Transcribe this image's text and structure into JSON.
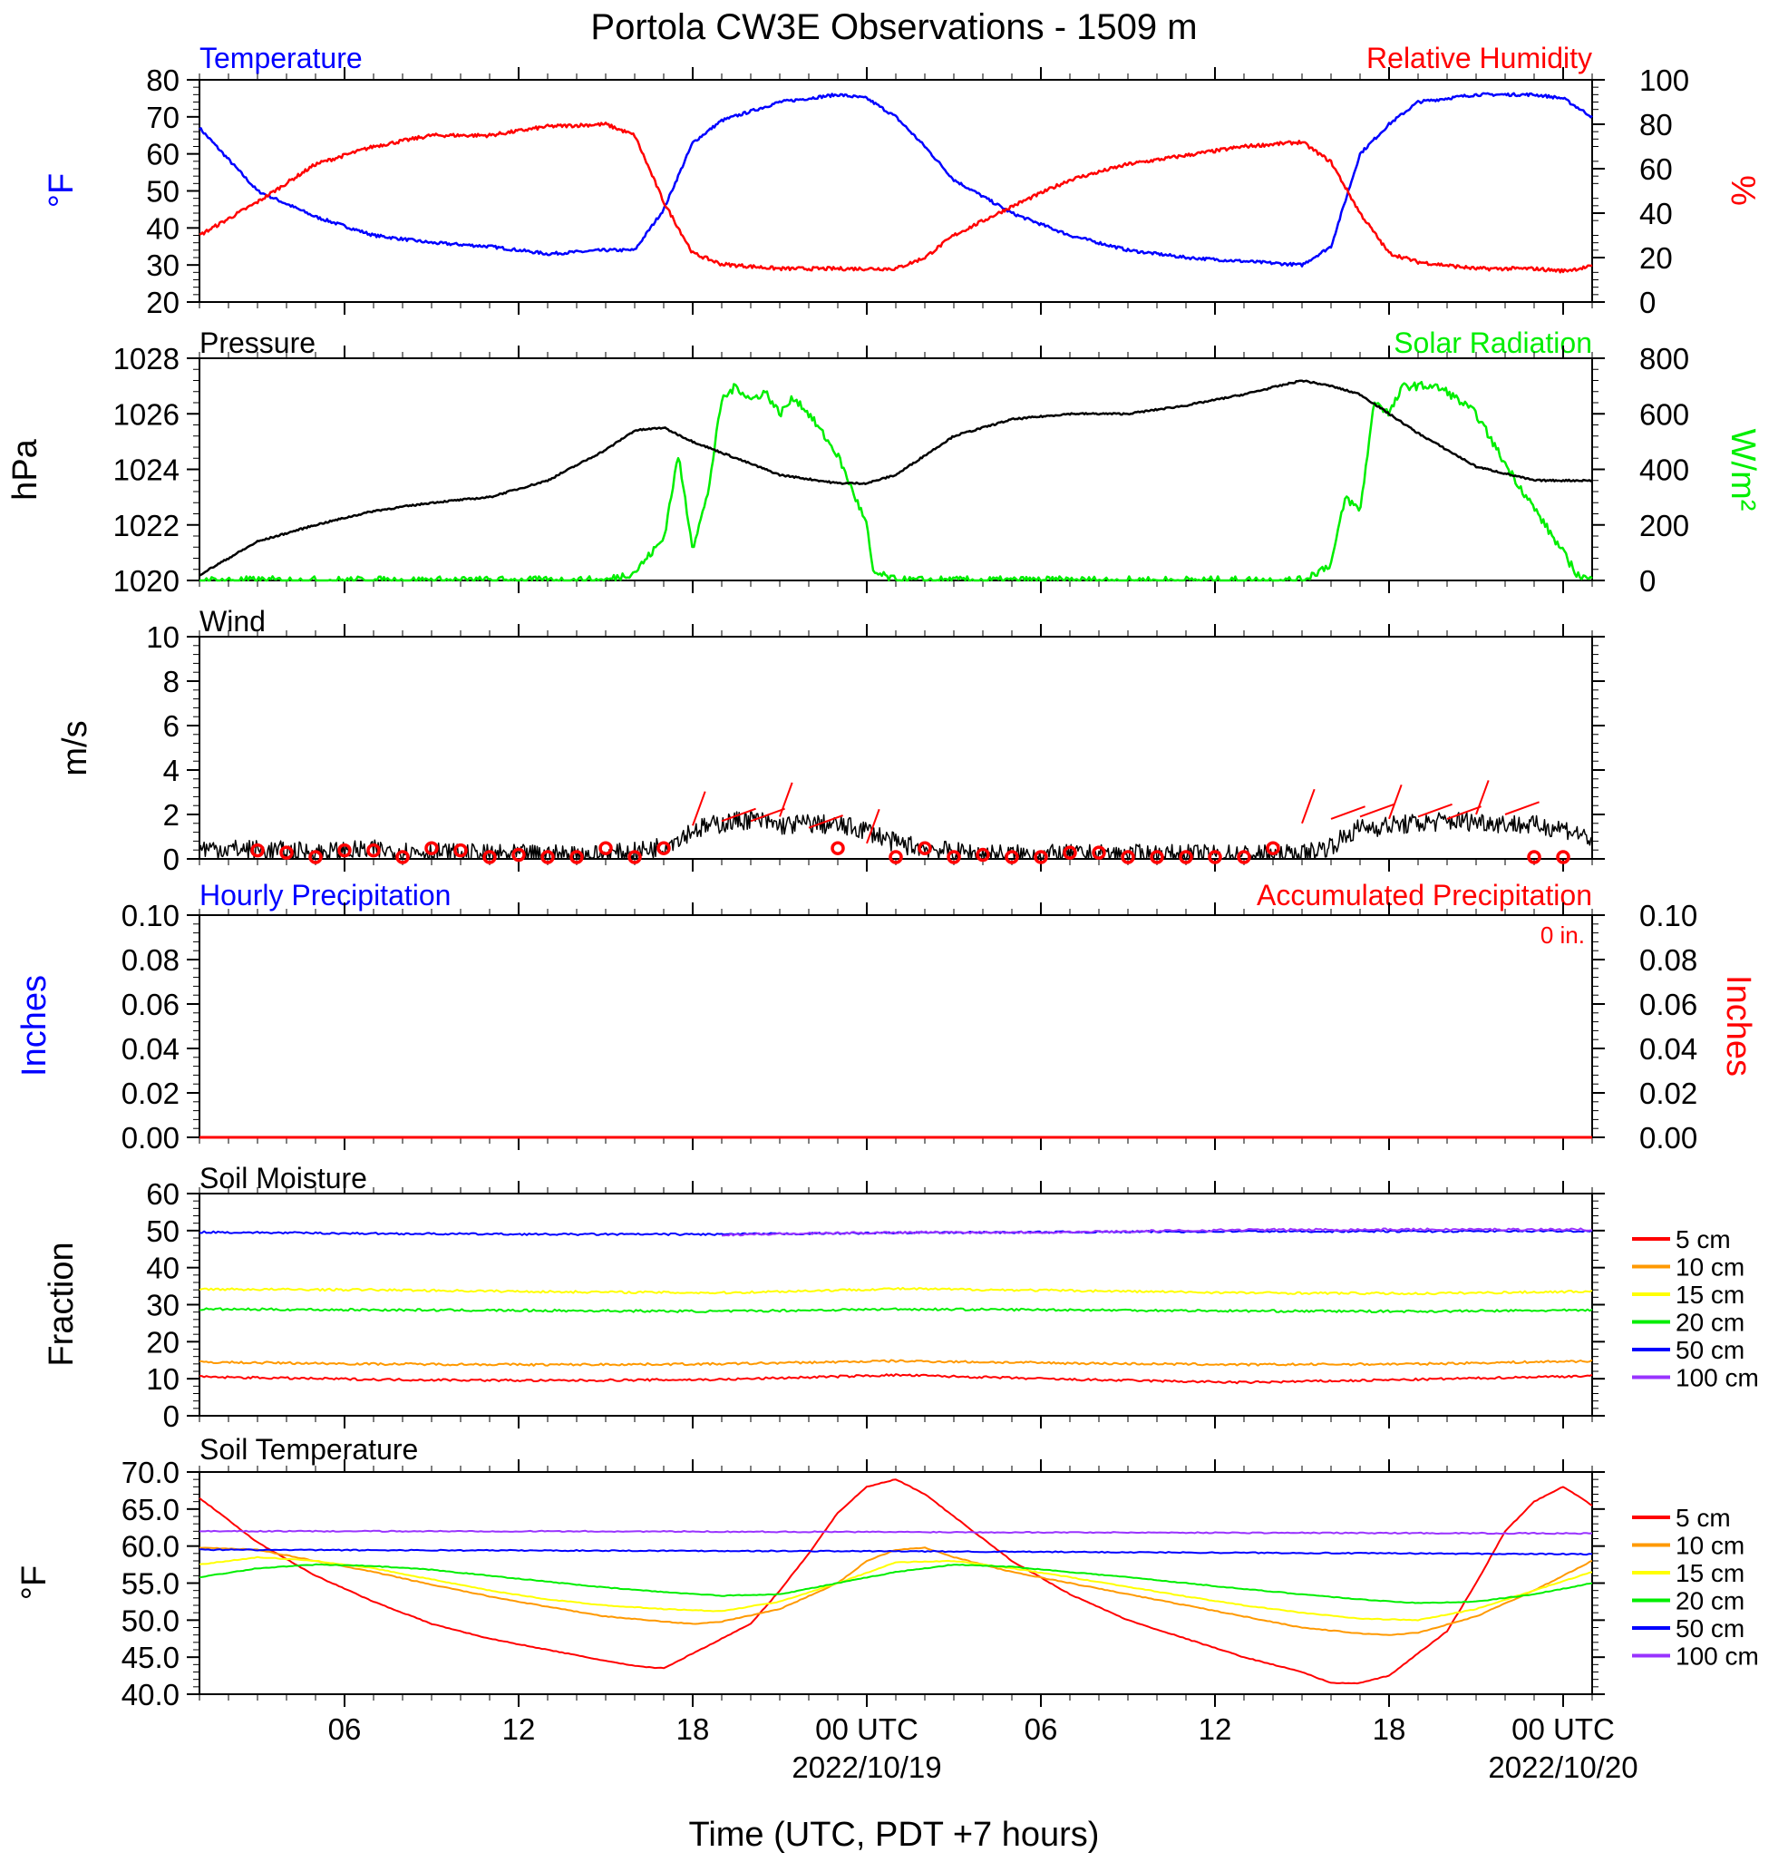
{
  "title": "Portola CW3E Observations - 1509 m",
  "xlabel": "Time (UTC, PDT +7 hours)",
  "x_ticks": [
    "06",
    "12",
    "18",
    "00 UTC",
    "06",
    "12",
    "18",
    "00 UTC"
  ],
  "x_dates": [
    "2022/10/19",
    "2022/10/20"
  ],
  "colors": {
    "temperature": "#0000ff",
    "rh": "#ff0000",
    "pressure": "#000000",
    "solar": "#00ee00",
    "wind": "#000000",
    "wind_barb": "#ff0000",
    "precip_hourly": "#0000ff",
    "precip_accum": "#ff0000"
  },
  "panels": {
    "temp_rh": {
      "left_title": "Temperature",
      "right_title": "Relative Humidity",
      "left_unit": "°F",
      "right_unit": "%",
      "left_ticks": [
        "20",
        "30",
        "40",
        "50",
        "60",
        "70",
        "80"
      ],
      "right_ticks": [
        "0",
        "20",
        "40",
        "60",
        "80",
        "100"
      ]
    },
    "pressure_solar": {
      "left_title": "Pressure",
      "right_title": "Solar Radiation",
      "left_unit": "hPa",
      "right_unit": "W/m²",
      "left_ticks": [
        "1020",
        "1022",
        "1024",
        "1026",
        "1028"
      ],
      "right_ticks": [
        "0",
        "200",
        "400",
        "600",
        "800"
      ]
    },
    "wind": {
      "left_title": "Wind",
      "left_unit": "m/s",
      "left_ticks": [
        "0",
        "2",
        "4",
        "6",
        "8",
        "10"
      ]
    },
    "precip": {
      "left_title": "Hourly Precipitation",
      "right_title": "Accumulated Precipitation",
      "left_unit": "Inches",
      "right_unit": "Inches",
      "accum_label": "0 in.",
      "left_ticks": [
        "0.00",
        "0.02",
        "0.04",
        "0.06",
        "0.08",
        "0.10"
      ],
      "right_ticks": [
        "0.00",
        "0.02",
        "0.04",
        "0.06",
        "0.08",
        "0.10"
      ]
    },
    "soil_moisture": {
      "left_title": "Soil Moisture",
      "left_unit": "Fraction",
      "left_ticks": [
        "0",
        "10",
        "20",
        "30",
        "40",
        "50",
        "60"
      ]
    },
    "soil_temp": {
      "left_title": "Soil Temperature",
      "left_unit": "°F",
      "left_ticks": [
        "40.0",
        "45.0",
        "50.0",
        "55.0",
        "60.0",
        "65.0",
        "70.0"
      ]
    }
  },
  "legend": [
    {
      "label": "5 cm",
      "color": "#ff0000"
    },
    {
      "label": "10 cm",
      "color": "#ff9900"
    },
    {
      "label": "15 cm",
      "color": "#ffff00"
    },
    {
      "label": "20 cm",
      "color": "#00ee00"
    },
    {
      "label": "50 cm",
      "color": "#0000ff"
    },
    {
      "label": "100 cm",
      "color": "#9933ff"
    }
  ],
  "chart_data": [
    {
      "type": "line",
      "title": "Temperature / Relative Humidity",
      "x_units": "hours since 2022-10-18 01 UTC",
      "series": [
        {
          "name": "Temperature",
          "axis": "left",
          "ylim": [
            20,
            80
          ],
          "x": [
            0,
            2,
            4,
            6,
            8,
            10,
            12,
            14,
            15,
            16,
            17,
            18,
            20,
            22,
            23,
            24,
            25,
            26,
            28,
            30,
            32,
            34,
            36,
            38,
            39,
            40,
            41,
            42,
            44,
            46,
            47,
            48
          ],
          "values": [
            67,
            50,
            43,
            38,
            36,
            35,
            33,
            34,
            34,
            45,
            63,
            69,
            74,
            76,
            75,
            70,
            62,
            53,
            44,
            38,
            34,
            32,
            31,
            30,
            35,
            60,
            68,
            74,
            76,
            76,
            75,
            70
          ]
        },
        {
          "name": "Relative Humidity",
          "axis": "right",
          "ylim": [
            0,
            100
          ],
          "x": [
            0,
            2,
            4,
            6,
            8,
            10,
            12,
            14,
            15,
            16,
            17,
            18,
            20,
            22,
            24,
            25,
            26,
            28,
            30,
            32,
            34,
            36,
            38,
            39,
            40,
            41,
            42,
            44,
            46,
            47,
            48
          ],
          "values": [
            30,
            45,
            62,
            70,
            75,
            75,
            79,
            80,
            75,
            45,
            22,
            17,
            15,
            15,
            15,
            20,
            30,
            43,
            55,
            62,
            66,
            70,
            72,
            63,
            40,
            22,
            18,
            15,
            15,
            14,
            16
          ]
        }
      ]
    },
    {
      "type": "line",
      "title": "Pressure / Solar Radiation",
      "series": [
        {
          "name": "Pressure",
          "axis": "left",
          "ylim": [
            1020,
            1028
          ],
          "x": [
            0,
            2,
            4,
            6,
            8,
            10,
            12,
            14,
            15,
            16,
            17,
            18,
            20,
            22,
            23,
            24,
            26,
            28,
            30,
            32,
            34,
            36,
            38,
            39,
            40,
            42,
            44,
            46,
            48
          ],
          "values": [
            1020.2,
            1021.4,
            1022.0,
            1022.5,
            1022.8,
            1023.0,
            1023.6,
            1024.7,
            1025.4,
            1025.5,
            1025.0,
            1024.6,
            1023.8,
            1023.5,
            1023.5,
            1023.8,
            1025.2,
            1025.8,
            1026.0,
            1026.0,
            1026.3,
            1026.7,
            1027.2,
            1027.0,
            1026.7,
            1025.3,
            1024.1,
            1023.6,
            1023.6
          ]
        },
        {
          "name": "Solar Radiation",
          "axis": "right",
          "ylim": [
            0,
            800
          ],
          "x": [
            0,
            14,
            15,
            16,
            16.5,
            17,
            17.5,
            18,
            18.5,
            19,
            19.5,
            20,
            20.5,
            21,
            22,
            23,
            23.2,
            24,
            38,
            39,
            39.5,
            40,
            40.5,
            41,
            41.5,
            42,
            42.5,
            43,
            44,
            45,
            46,
            47,
            47.5,
            48
          ],
          "values": [
            0,
            0,
            30,
            150,
            450,
            120,
            300,
            650,
            700,
            650,
            680,
            600,
            660,
            600,
            450,
            200,
            30,
            0,
            0,
            60,
            300,
            250,
            650,
            600,
            700,
            700,
            700,
            680,
            600,
            420,
            260,
            100,
            20,
            0
          ]
        }
      ]
    },
    {
      "type": "line",
      "title": "Wind",
      "series": [
        {
          "name": "Wind",
          "ylim": [
            0,
            10
          ],
          "x": [
            0,
            2,
            4,
            6,
            8,
            10,
            12,
            14,
            15,
            16,
            17,
            18,
            19,
            20,
            21,
            22,
            23,
            24,
            26,
            28,
            30,
            32,
            34,
            36,
            38,
            39,
            40,
            41,
            42,
            43,
            44,
            45,
            46,
            47,
            48
          ],
          "values": [
            0.5,
            0.4,
            0.3,
            0.4,
            0.3,
            0.2,
            0.2,
            0.2,
            0.3,
            0.6,
            1.3,
            1.6,
            1.8,
            1.5,
            1.6,
            1.5,
            1.3,
            0.7,
            0.3,
            0.2,
            0.2,
            0.2,
            0.2,
            0.2,
            0.2,
            0.6,
            1.4,
            1.5,
            1.6,
            1.7,
            1.7,
            1.6,
            1.5,
            1.4,
            0.9
          ]
        },
        {
          "name": "Wind barbs",
          "x": [
            2,
            3,
            4,
            5,
            6,
            7,
            8,
            9,
            10,
            11,
            12,
            13,
            14,
            15,
            16,
            17,
            18,
            19,
            20,
            21,
            22,
            23,
            24,
            25,
            26,
            27,
            28,
            29,
            30,
            31,
            32,
            33,
            34,
            35,
            36,
            37,
            38,
            39,
            40,
            41,
            42,
            43,
            44,
            45,
            46,
            47
          ],
          "values": [
            0.3,
            0.2,
            0.0,
            0.3,
            0.3,
            0.0,
            0.4,
            0.3,
            0.0,
            0.1,
            0.0,
            0.0,
            0.4,
            0.0,
            0.4,
            1.5,
            1.7,
            1.7,
            1.9,
            1.4,
            0.4,
            0.7,
            0.0,
            0.4,
            0.0,
            0.1,
            0.0,
            0.0,
            0.2,
            0.2,
            0.0,
            0.0,
            0.0,
            0.0,
            0.0,
            0.4,
            1.6,
            1.8,
            1.9,
            1.8,
            1.9,
            1.8,
            2.0,
            2.0,
            0,
            0
          ]
        }
      ]
    },
    {
      "type": "line",
      "title": "Hourly Precipitation / Accumulated Precipitation",
      "series": [
        {
          "name": "Hourly Precipitation",
          "axis": "left",
          "ylim": [
            0,
            0.1
          ],
          "x": [
            0,
            48
          ],
          "values": [
            0,
            0
          ]
        },
        {
          "name": "Accumulated Precipitation",
          "axis": "right",
          "ylim": [
            0,
            0.1
          ],
          "x": [
            0,
            48
          ],
          "values": [
            0,
            0
          ]
        }
      ]
    },
    {
      "type": "line",
      "title": "Soil Moisture",
      "series": [
        {
          "name": "5 cm",
          "ylim": [
            0,
            60
          ],
          "x": [
            0,
            6,
            12,
            18,
            24,
            30,
            36,
            42,
            48
          ],
          "values": [
            10.5,
            9.8,
            9.5,
            9.8,
            11,
            9.8,
            9.0,
            9.8,
            10.8
          ]
        },
        {
          "name": "10 cm",
          "x": [
            0,
            6,
            12,
            18,
            24,
            30,
            36,
            42,
            48
          ],
          "values": [
            14.5,
            14,
            13.8,
            14,
            14.8,
            14.2,
            13.8,
            14,
            14.8
          ]
        },
        {
          "name": "15 cm",
          "x": [
            0,
            6,
            12,
            18,
            24,
            30,
            36,
            42,
            48
          ],
          "values": [
            34.2,
            34.0,
            33.5,
            33.2,
            34.3,
            33.8,
            33.2,
            33.0,
            33.6
          ]
        },
        {
          "name": "20 cm",
          "x": [
            0,
            6,
            12,
            18,
            24,
            30,
            36,
            42,
            48
          ],
          "values": [
            28.8,
            28.6,
            28.4,
            28.2,
            28.8,
            28.6,
            28.3,
            28.2,
            28.5
          ]
        },
        {
          "name": "50 cm",
          "x": [
            0,
            6,
            12,
            18,
            24,
            30,
            36,
            42,
            48
          ],
          "values": [
            49.6,
            49.2,
            49.0,
            49.0,
            49.4,
            49.6,
            49.8,
            49.8,
            49.9
          ]
        },
        {
          "name": "100 cm",
          "x": [
            18,
            24,
            30,
            36,
            42,
            48
          ],
          "values": [
            48.9,
            49.5,
            49.6,
            50.2,
            50.3,
            50.3
          ]
        }
      ]
    },
    {
      "type": "line",
      "title": "Soil Temperature",
      "series": [
        {
          "name": "5 cm",
          "ylim": [
            40,
            70
          ],
          "x": [
            0,
            2,
            4,
            6,
            8,
            10,
            12,
            14,
            15,
            16,
            17,
            18,
            19,
            20,
            21,
            22,
            23,
            24,
            25,
            26,
            28,
            30,
            32,
            34,
            36,
            38,
            39,
            40,
            41,
            42,
            43,
            44,
            45,
            46,
            47,
            48
          ],
          "values": [
            66.5,
            60.5,
            56,
            52.5,
            49.5,
            47.5,
            46.0,
            44.5,
            43.8,
            43.5,
            45.5,
            47.5,
            49.5,
            54.0,
            59.0,
            64.5,
            68.0,
            69.0,
            67.0,
            64.0,
            58.0,
            53.5,
            50.0,
            47.5,
            45.0,
            43.0,
            41.5,
            41.5,
            42.5,
            45.5,
            48.5,
            55.0,
            62.0,
            66.0,
            68.0,
            65.5
          ]
        },
        {
          "name": "10 cm",
          "x": [
            0,
            2,
            4,
            6,
            8,
            10,
            12,
            14,
            16,
            17,
            18,
            20,
            22,
            23,
            24,
            25,
            26,
            28,
            30,
            32,
            34,
            36,
            38,
            40,
            41,
            42,
            44,
            46,
            48
          ],
          "values": [
            59.8,
            59.5,
            58.0,
            56.5,
            54.8,
            53.2,
            51.8,
            50.5,
            49.8,
            49.5,
            49.8,
            51.5,
            55.0,
            58.0,
            59.5,
            59.8,
            58.5,
            56.5,
            55.0,
            53.5,
            52.0,
            50.5,
            49.0,
            48.2,
            48.0,
            48.3,
            50.5,
            54.0,
            58.0
          ]
        },
        {
          "name": "15 cm",
          "x": [
            0,
            2,
            4,
            6,
            8,
            10,
            12,
            14,
            16,
            18,
            20,
            22,
            24,
            26,
            28,
            30,
            32,
            34,
            36,
            38,
            40,
            42,
            44,
            46,
            48
          ],
          "values": [
            57.5,
            58.5,
            58.0,
            57.0,
            55.5,
            54.0,
            52.8,
            52.0,
            51.5,
            51.2,
            52.5,
            55.0,
            57.8,
            58.0,
            57.0,
            55.8,
            54.5,
            53.2,
            52.0,
            51.0,
            50.2,
            50.0,
            51.5,
            54.0,
            56.5
          ]
        },
        {
          "name": "20 cm",
          "x": [
            0,
            2,
            4,
            6,
            8,
            10,
            12,
            14,
            16,
            18,
            20,
            22,
            24,
            26,
            28,
            30,
            32,
            34,
            36,
            38,
            40,
            42,
            44,
            46,
            48
          ],
          "values": [
            55.8,
            57.0,
            57.5,
            57.3,
            56.8,
            56.0,
            55.2,
            54.4,
            53.8,
            53.3,
            53.5,
            55.0,
            56.5,
            57.5,
            57.2,
            56.5,
            55.8,
            55.0,
            54.2,
            53.5,
            52.8,
            52.3,
            52.5,
            53.5,
            55.0
          ]
        },
        {
          "name": "50 cm",
          "x": [
            0,
            12,
            24,
            36,
            48
          ],
          "values": [
            59.5,
            59.4,
            59.3,
            59.1,
            58.9
          ]
        },
        {
          "name": "100 cm",
          "x": [
            0,
            12,
            24,
            36,
            48
          ],
          "values": [
            62.0,
            62.0,
            61.9,
            61.8,
            61.7
          ]
        }
      ]
    }
  ]
}
